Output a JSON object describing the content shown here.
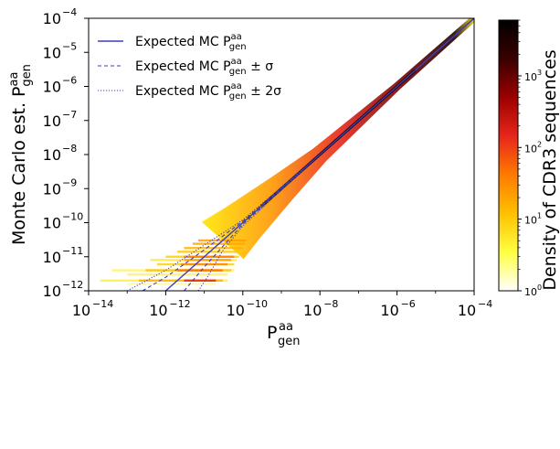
{
  "chart_data": {
    "type": "heatmap",
    "subtype": "2D density histogram with expected-value lines on log-log axes",
    "title": "",
    "xlabel": {
      "base": "P",
      "sup": "aa",
      "sub": "gen"
    },
    "ylabel": {
      "prefix": "Monte Carlo est. ",
      "base": "P",
      "sup": "aa",
      "sub": "gen"
    },
    "xscale": "log",
    "yscale": "log",
    "xlim": [
      1e-14,
      0.0001
    ],
    "ylim": [
      1e-12,
      0.0001
    ],
    "x_ticks": [
      {
        "base": "10",
        "exp": "−14",
        "value": 1e-14
      },
      {
        "base": "10",
        "exp": "−12",
        "value": 1e-12
      },
      {
        "base": "10",
        "exp": "−10",
        "value": 1e-10
      },
      {
        "base": "10",
        "exp": "−8",
        "value": 1e-08
      },
      {
        "base": "10",
        "exp": "−6",
        "value": 1e-06
      },
      {
        "base": "10",
        "exp": "−4",
        "value": 0.0001
      }
    ],
    "y_ticks": [
      {
        "base": "10",
        "exp": "−12",
        "value": 1e-12
      },
      {
        "base": "10",
        "exp": "−11",
        "value": 1e-11
      },
      {
        "base": "10",
        "exp": "−10",
        "value": 1e-10
      },
      {
        "base": "10",
        "exp": "−9",
        "value": 1e-09
      },
      {
        "base": "10",
        "exp": "−8",
        "value": 1e-08
      },
      {
        "base": "10",
        "exp": "−7",
        "value": 1e-07
      },
      {
        "base": "10",
        "exp": "−6",
        "value": 1e-06
      },
      {
        "base": "10",
        "exp": "−5",
        "value": 1e-05
      },
      {
        "base": "10",
        "exp": "−4",
        "value": 0.0001
      }
    ],
    "legend": {
      "placement": "top-left",
      "entries": [
        {
          "prefix": "Expected MC ",
          "base": "P",
          "sup": "aa",
          "sub": "gen",
          "suffix": "",
          "style": "solid"
        },
        {
          "prefix": "Expected MC ",
          "base": "P",
          "sup": "aa",
          "sub": "gen",
          "suffix": " ± σ",
          "style": "dashed"
        },
        {
          "prefix": "Expected MC ",
          "base": "P",
          "sup": "aa",
          "sub": "gen",
          "suffix": " ± 2σ",
          "style": "dotted"
        }
      ]
    },
    "series": [
      {
        "style": "solid",
        "x": [
          1e-12,
          1e-11,
          1e-10,
          1e-08,
          1e-06,
          0.0001
        ],
        "y": [
          1e-12,
          1e-11,
          1e-10,
          1e-08,
          1e-06,
          0.0001
        ]
      },
      {
        "style": "dashed",
        "x": [
          2.5e-13,
          1e-12,
          3e-12,
          1e-11,
          1e-10,
          1e-08,
          1e-06,
          0.0001
        ],
        "y": [
          1e-12,
          2.5e-12,
          6e-12,
          1.6e-11,
          1.1e-10,
          1e-08,
          1e-06,
          0.0001
        ]
      },
      {
        "style": "dashed",
        "x": [
          3e-12,
          1e-11,
          1e-10,
          1e-08,
          1e-06,
          0.0001
        ],
        "y": [
          1e-12,
          5e-12,
          9e-11,
          1e-08,
          1e-06,
          0.0001
        ]
      },
      {
        "style": "dotted",
        "x": [
          1e-13,
          1e-12,
          3e-12,
          1e-11,
          1e-10,
          1e-08,
          1e-06,
          0.0001
        ],
        "y": [
          1e-12,
          4e-12,
          9e-12,
          2.2e-11,
          1.2e-10,
          1e-08,
          1e-06,
          0.0001
        ]
      },
      {
        "style": "dotted",
        "x": [
          7e-12,
          1.2e-11,
          3e-11,
          1e-10,
          1e-08,
          1e-06,
          0.0001
        ],
        "y": [
          1e-12,
          2.5e-12,
          1.5e-11,
          8e-11,
          1e-08,
          1e-06,
          0.0001
        ]
      }
    ],
    "colorbar": {
      "label": "Density of CDR3 sequences",
      "scale": "log",
      "range": [
        1,
        6000
      ],
      "ticks": [
        {
          "base": "10",
          "exp": "0",
          "value": 1
        },
        {
          "base": "10",
          "exp": "1",
          "value": 10
        },
        {
          "base": "10",
          "exp": "2",
          "value": 100
        },
        {
          "base": "10",
          "exp": "3",
          "value": 1000
        }
      ],
      "colormap": "hot_r",
      "colors": [
        "#ffffff",
        "#ffff40",
        "#ffc000",
        "#ff7a00",
        "#e8261a",
        "#9c0000",
        "#3a0000",
        "#000000"
      ]
    },
    "line_color": "#3a3fb5",
    "grid": false
  }
}
